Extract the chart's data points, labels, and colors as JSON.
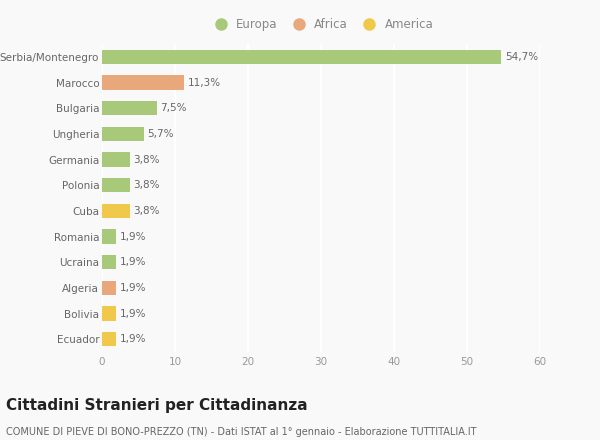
{
  "categories": [
    "Serbia/Montenegro",
    "Marocco",
    "Bulgaria",
    "Ungheria",
    "Germania",
    "Polonia",
    "Cuba",
    "Romania",
    "Ucraina",
    "Algeria",
    "Bolivia",
    "Ecuador"
  ],
  "values": [
    54.7,
    11.3,
    7.5,
    5.7,
    3.8,
    3.8,
    3.8,
    1.9,
    1.9,
    1.9,
    1.9,
    1.9
  ],
  "labels": [
    "54,7%",
    "11,3%",
    "7,5%",
    "5,7%",
    "3,8%",
    "3,8%",
    "3,8%",
    "1,9%",
    "1,9%",
    "1,9%",
    "1,9%",
    "1,9%"
  ],
  "continents": [
    "Europa",
    "Africa",
    "Europa",
    "Europa",
    "Europa",
    "Europa",
    "America",
    "Europa",
    "Europa",
    "Africa",
    "America",
    "America"
  ],
  "colors": {
    "Europa": "#a8c87a",
    "Africa": "#e8a87c",
    "America": "#f0c84a"
  },
  "legend_labels": [
    "Europa",
    "Africa",
    "America"
  ],
  "legend_colors": [
    "#a8c87a",
    "#e8a87c",
    "#f0c84a"
  ],
  "xlim": [
    0,
    60
  ],
  "xticks": [
    0,
    10,
    20,
    30,
    40,
    50,
    60
  ],
  "title": "Cittadini Stranieri per Cittadinanza",
  "subtitle": "COMUNE DI PIEVE DI BONO-PREZZO (TN) - Dati ISTAT al 1° gennaio - Elaborazione TUTTITALIA.IT",
  "bg_color": "#f9f9f9",
  "grid_color": "#ffffff",
  "bar_height": 0.55,
  "label_fontsize": 7.5,
  "tick_fontsize": 7.5,
  "legend_fontsize": 8.5,
  "title_fontsize": 11,
  "subtitle_fontsize": 7.0
}
